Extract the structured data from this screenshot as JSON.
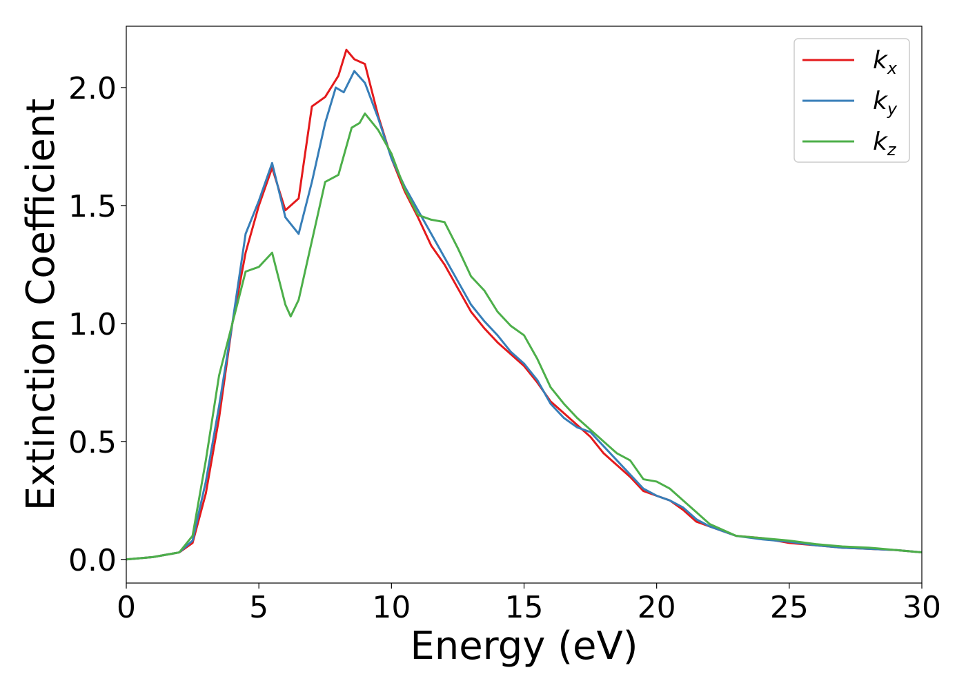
{
  "chart_data": {
    "type": "line",
    "title": "",
    "xlabel": "Energy (eV)",
    "ylabel": "Extinction Coefficient",
    "xlim": [
      0,
      30
    ],
    "ylim": [
      -0.1,
      2.26
    ],
    "xticks": [
      0,
      5,
      10,
      15,
      20,
      25,
      30
    ],
    "yticks": [
      0.0,
      0.5,
      1.0,
      1.5,
      2.0
    ],
    "xtick_labels": [
      "0",
      "5",
      "10",
      "15",
      "20",
      "25",
      "30"
    ],
    "ytick_labels": [
      "0.0",
      "0.5",
      "1.0",
      "1.5",
      "2.0"
    ],
    "grid": false,
    "legend_position": "top-right",
    "series": [
      {
        "name": "k_x",
        "legend_base": "k",
        "legend_sub": "x",
        "color": "#e41a1c",
        "x": [
          0,
          1,
          2,
          2.5,
          3,
          3.5,
          4,
          4.5,
          5,
          5.5,
          6,
          6.5,
          7,
          7.5,
          8,
          8.3,
          8.6,
          9,
          9.5,
          10,
          10.5,
          11,
          11.5,
          12,
          12.5,
          13,
          13.5,
          14,
          14.5,
          15,
          15.5,
          16,
          16.5,
          17,
          17.5,
          18,
          18.5,
          19,
          19.5,
          20,
          20.5,
          21,
          21.5,
          22,
          23,
          24,
          25,
          26,
          27,
          28,
          29,
          30
        ],
        "y": [
          0.0,
          0.01,
          0.03,
          0.07,
          0.28,
          0.6,
          1.0,
          1.3,
          1.5,
          1.66,
          1.48,
          1.53,
          1.92,
          1.96,
          2.05,
          2.16,
          2.12,
          2.1,
          1.88,
          1.7,
          1.56,
          1.45,
          1.33,
          1.25,
          1.15,
          1.05,
          0.98,
          0.92,
          0.87,
          0.82,
          0.75,
          0.67,
          0.62,
          0.57,
          0.52,
          0.45,
          0.4,
          0.35,
          0.29,
          0.27,
          0.25,
          0.21,
          0.16,
          0.14,
          0.1,
          0.09,
          0.07,
          0.06,
          0.05,
          0.045,
          0.04,
          0.03
        ]
      },
      {
        "name": "k_y",
        "legend_base": "k",
        "legend_sub": "y",
        "color": "#377eb8",
        "x": [
          0,
          1,
          2,
          2.5,
          3,
          3.5,
          4,
          4.5,
          5,
          5.5,
          6,
          6.5,
          7,
          7.5,
          7.9,
          8.2,
          8.6,
          9,
          9.5,
          10,
          10.5,
          11,
          11.5,
          12,
          12.5,
          13,
          13.5,
          14,
          14.5,
          15,
          15.5,
          16,
          16.5,
          17,
          17.5,
          18,
          18.5,
          19,
          19.5,
          20,
          20.5,
          21,
          21.5,
          22,
          23,
          24,
          25,
          26,
          27,
          28,
          29,
          30
        ],
        "y": [
          0.0,
          0.01,
          0.03,
          0.08,
          0.33,
          0.65,
          1.0,
          1.38,
          1.52,
          1.68,
          1.45,
          1.38,
          1.6,
          1.85,
          2.0,
          1.98,
          2.07,
          2.02,
          1.87,
          1.7,
          1.58,
          1.48,
          1.38,
          1.28,
          1.18,
          1.08,
          1.01,
          0.95,
          0.88,
          0.83,
          0.76,
          0.66,
          0.6,
          0.56,
          0.54,
          0.48,
          0.42,
          0.36,
          0.3,
          0.27,
          0.25,
          0.22,
          0.17,
          0.14,
          0.1,
          0.085,
          0.075,
          0.06,
          0.05,
          0.045,
          0.04,
          0.03
        ]
      },
      {
        "name": "k_z",
        "legend_base": "k",
        "legend_sub": "z",
        "color": "#4daf4a",
        "x": [
          0,
          1,
          2,
          2.5,
          3,
          3.5,
          4,
          4.5,
          5,
          5.5,
          6,
          6.2,
          6.5,
          7,
          7.5,
          8,
          8.5,
          8.8,
          9,
          9.5,
          10,
          10.5,
          11,
          11.5,
          12,
          12.5,
          13,
          13.5,
          14,
          14.5,
          15,
          15.5,
          16,
          16.5,
          17,
          17.5,
          18,
          18.5,
          19,
          19.5,
          20,
          20.5,
          21,
          21.5,
          22,
          23,
          24,
          25,
          26,
          27,
          28,
          29,
          30
        ],
        "y": [
          0.0,
          0.01,
          0.03,
          0.1,
          0.42,
          0.78,
          1.0,
          1.22,
          1.24,
          1.3,
          1.08,
          1.03,
          1.1,
          1.35,
          1.6,
          1.63,
          1.83,
          1.85,
          1.89,
          1.82,
          1.72,
          1.57,
          1.46,
          1.44,
          1.43,
          1.32,
          1.2,
          1.14,
          1.05,
          0.99,
          0.95,
          0.85,
          0.73,
          0.66,
          0.6,
          0.55,
          0.5,
          0.45,
          0.42,
          0.34,
          0.33,
          0.3,
          0.25,
          0.2,
          0.15,
          0.1,
          0.09,
          0.08,
          0.065,
          0.055,
          0.05,
          0.04,
          0.03
        ]
      }
    ]
  }
}
